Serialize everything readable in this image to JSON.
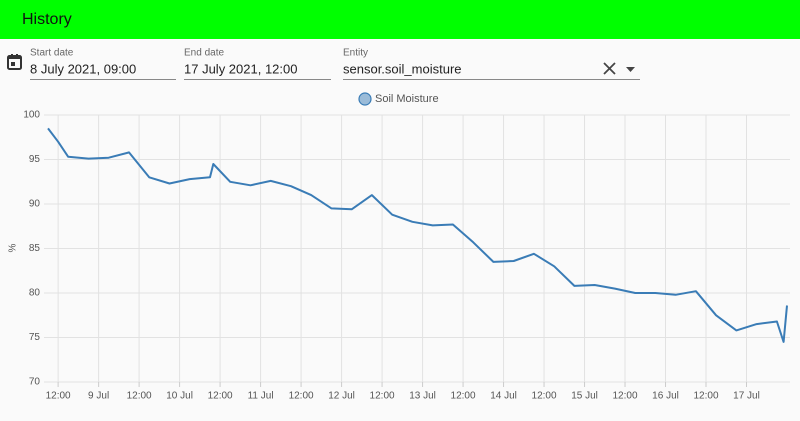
{
  "header": {
    "title": "History"
  },
  "form": {
    "start_date": {
      "label": "Start date",
      "value": "8 July 2021, 09:00"
    },
    "end_date": {
      "label": "End date",
      "value": "17 July 2021, 12:00"
    },
    "entity": {
      "label": "Entity",
      "value": "sensor.soil_moisture"
    }
  },
  "chart_data": {
    "type": "line",
    "ylabel": "%",
    "x": [
      "2021-07-08T09:00",
      "2021-07-08T12:00",
      "2021-07-08T15:00",
      "2021-07-08T21:00",
      "2021-07-09T03:00",
      "2021-07-09T09:00",
      "2021-07-09T15:00",
      "2021-07-09T21:00",
      "2021-07-10T03:00",
      "2021-07-10T09:00",
      "2021-07-10T10:00",
      "2021-07-10T15:00",
      "2021-07-10T21:00",
      "2021-07-11T03:00",
      "2021-07-11T09:00",
      "2021-07-11T15:00",
      "2021-07-11T21:00",
      "2021-07-12T03:00",
      "2021-07-12T09:00",
      "2021-07-12T15:00",
      "2021-07-12T21:00",
      "2021-07-13T03:00",
      "2021-07-13T09:00",
      "2021-07-13T15:00",
      "2021-07-13T21:00",
      "2021-07-14T03:00",
      "2021-07-14T09:00",
      "2021-07-14T15:00",
      "2021-07-14T21:00",
      "2021-07-15T03:00",
      "2021-07-15T09:00",
      "2021-07-15T15:00",
      "2021-07-15T21:00",
      "2021-07-16T03:00",
      "2021-07-16T09:00",
      "2021-07-16T15:00",
      "2021-07-16T21:00",
      "2021-07-17T03:00",
      "2021-07-17T09:00",
      "2021-07-17T11:00",
      "2021-07-17T12:00"
    ],
    "series": [
      {
        "name": "Soil Moisture",
        "color": "#3a7cb6",
        "values": [
          98.5,
          97.0,
          95.3,
          95.1,
          95.2,
          95.8,
          93.0,
          92.3,
          92.8,
          93.0,
          94.5,
          92.5,
          92.1,
          92.6,
          92.0,
          91.0,
          89.5,
          89.4,
          91.0,
          88.8,
          88.0,
          87.6,
          87.7,
          85.7,
          83.5,
          83.6,
          84.4,
          83.0,
          80.8,
          80.9,
          80.5,
          80.0,
          80.0,
          79.8,
          80.2,
          77.5,
          75.8,
          76.5,
          76.8,
          74.5,
          78.6
        ]
      }
    ],
    "xlim": [
      "2021-07-08T09:00",
      "2021-07-17T12:00"
    ],
    "xticks": [
      {
        "value": "2021-07-08T12:00",
        "label": "12:00"
      },
      {
        "value": "2021-07-09T00:00",
        "label": "9 Jul"
      },
      {
        "value": "2021-07-09T12:00",
        "label": "12:00"
      },
      {
        "value": "2021-07-10T00:00",
        "label": "10 Jul"
      },
      {
        "value": "2021-07-10T12:00",
        "label": "12:00"
      },
      {
        "value": "2021-07-11T00:00",
        "label": "11 Jul"
      },
      {
        "value": "2021-07-11T12:00",
        "label": "12:00"
      },
      {
        "value": "2021-07-12T00:00",
        "label": "12 Jul"
      },
      {
        "value": "2021-07-12T12:00",
        "label": "12:00"
      },
      {
        "value": "2021-07-13T00:00",
        "label": "13 Jul"
      },
      {
        "value": "2021-07-13T12:00",
        "label": "12:00"
      },
      {
        "value": "2021-07-14T00:00",
        "label": "14 Jul"
      },
      {
        "value": "2021-07-14T12:00",
        "label": "12:00"
      },
      {
        "value": "2021-07-15T00:00",
        "label": "15 Jul"
      },
      {
        "value": "2021-07-15T12:00",
        "label": "12:00"
      },
      {
        "value": "2021-07-16T00:00",
        "label": "16 Jul"
      },
      {
        "value": "2021-07-16T12:00",
        "label": "12:00"
      },
      {
        "value": "2021-07-17T00:00",
        "label": "17 Jul"
      }
    ],
    "ylim": [
      70,
      100
    ],
    "yticks": [
      70,
      75,
      80,
      85,
      90,
      95,
      100
    ],
    "grid": true
  }
}
